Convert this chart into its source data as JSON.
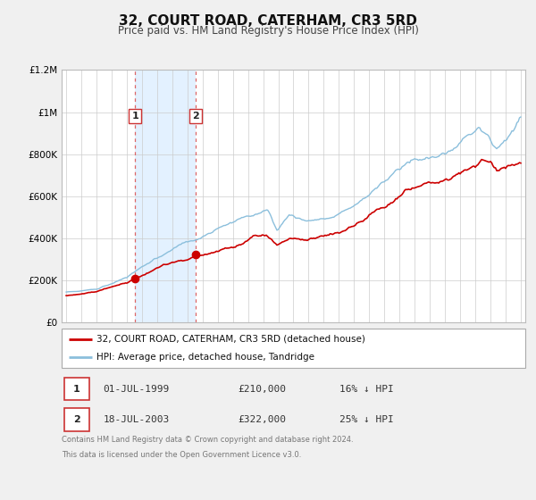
{
  "title": "32, COURT ROAD, CATERHAM, CR3 5RD",
  "subtitle": "Price paid vs. HM Land Registry's House Price Index (HPI)",
  "background_color": "#f0f0f0",
  "plot_background": "#ffffff",
  "x_start_year": 1995,
  "x_end_year": 2025,
  "y_min": 0,
  "y_max": 1200000,
  "y_ticks": [
    0,
    200000,
    400000,
    600000,
    800000,
    1000000,
    1200000
  ],
  "y_tick_labels": [
    "£0",
    "£200K",
    "£400K",
    "£600K",
    "£800K",
    "£1M",
    "£1.2M"
  ],
  "sale1_year": 1999.54,
  "sale1_price": 210000,
  "sale1_label": "1",
  "sale1_date": "01-JUL-1999",
  "sale1_pct": "16% ↓ HPI",
  "sale2_year": 2003.54,
  "sale2_price": 322000,
  "sale2_label": "2",
  "sale2_date": "18-JUL-2003",
  "sale2_pct": "25% ↓ HPI",
  "hpi_color": "#8bbfdc",
  "price_color": "#cc0000",
  "marker_color": "#cc0000",
  "vline_color": "#dd6666",
  "shade_color": "#ddeeff",
  "legend_label1": "32, COURT ROAD, CATERHAM, CR3 5RD (detached house)",
  "legend_label2": "HPI: Average price, detached house, Tandridge",
  "footer1": "Contains HM Land Registry data © Crown copyright and database right 2024.",
  "footer2": "This data is licensed under the Open Government Licence v3.0."
}
